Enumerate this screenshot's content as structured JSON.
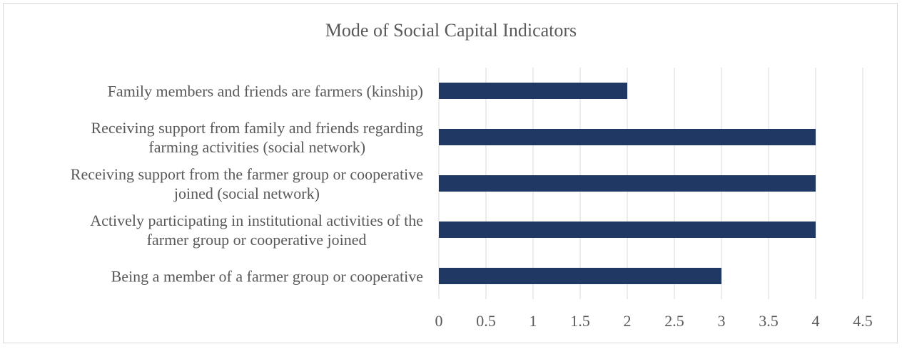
{
  "chart_data": {
    "type": "bar",
    "orientation": "horizontal",
    "title": "Mode of Social Capital Indicators",
    "xlabel": "",
    "ylabel": "",
    "xlim": [
      0,
      4.5
    ],
    "xticks": [
      "0",
      "0.5",
      "1",
      "1.5",
      "2",
      "2.5",
      "3",
      "3.5",
      "4",
      "4.5"
    ],
    "grid": true,
    "legend": "none",
    "bar_color": "#1f3864",
    "categories": [
      [
        "Family members and friends are farmers (kinship)"
      ],
      [
        "Receiving support from family and friends regarding",
        "farming activities (social network)"
      ],
      [
        "Receiving support from the farmer group or cooperative",
        "joined (social network)"
      ],
      [
        "Actively participating in institutional activities of the",
        "farmer group or cooperative joined"
      ],
      [
        "Being a member of a farmer group or cooperative"
      ]
    ],
    "values": [
      2,
      4,
      4,
      4,
      3
    ]
  }
}
